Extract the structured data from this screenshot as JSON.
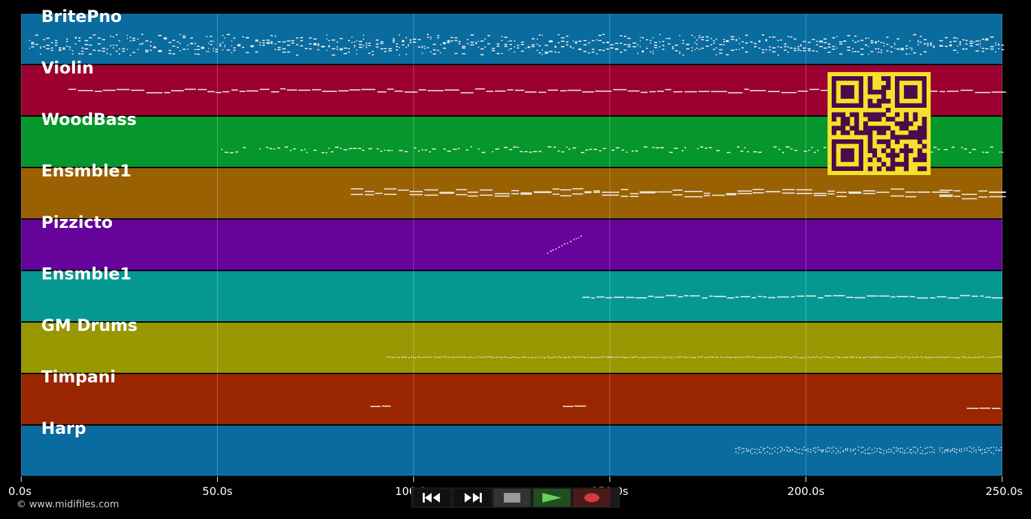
{
  "app": {
    "copyright": "© www.midifiles.com"
  },
  "timeline": {
    "ticks": [
      "0.0s",
      "50.0s",
      "100.0s",
      "150.0s",
      "200.0s",
      "250.0s"
    ]
  },
  "tracks": [
    {
      "name": "BritePno",
      "color": "#0a6b9e"
    },
    {
      "name": "Violin",
      "color": "#9b0030"
    },
    {
      "name": "WoodBass",
      "color": "#05962c"
    },
    {
      "name": "Ensmble1",
      "color": "#9a6102"
    },
    {
      "name": "Pizzicto",
      "color": "#65039a"
    },
    {
      "name": "Ensmble1",
      "color": "#059893"
    },
    {
      "name": "GM Drums",
      "color": "#999802"
    },
    {
      "name": "Timpani",
      "color": "#992600"
    },
    {
      "name": "Harp",
      "color": "#0a6b9e"
    }
  ],
  "transport": {
    "buttons": [
      {
        "icon": "rewind-icon",
        "bg": "#111111"
      },
      {
        "icon": "fast-forward-icon",
        "bg": "#111111"
      },
      {
        "icon": "stop-icon",
        "bg": "#333333"
      },
      {
        "icon": "play-icon",
        "bg": "#1f4f1f"
      },
      {
        "icon": "record-icon",
        "bg": "#4a1a1a"
      }
    ]
  },
  "qr_code": {
    "fg": "#4a0c4a",
    "bg": "#f5e12a"
  }
}
